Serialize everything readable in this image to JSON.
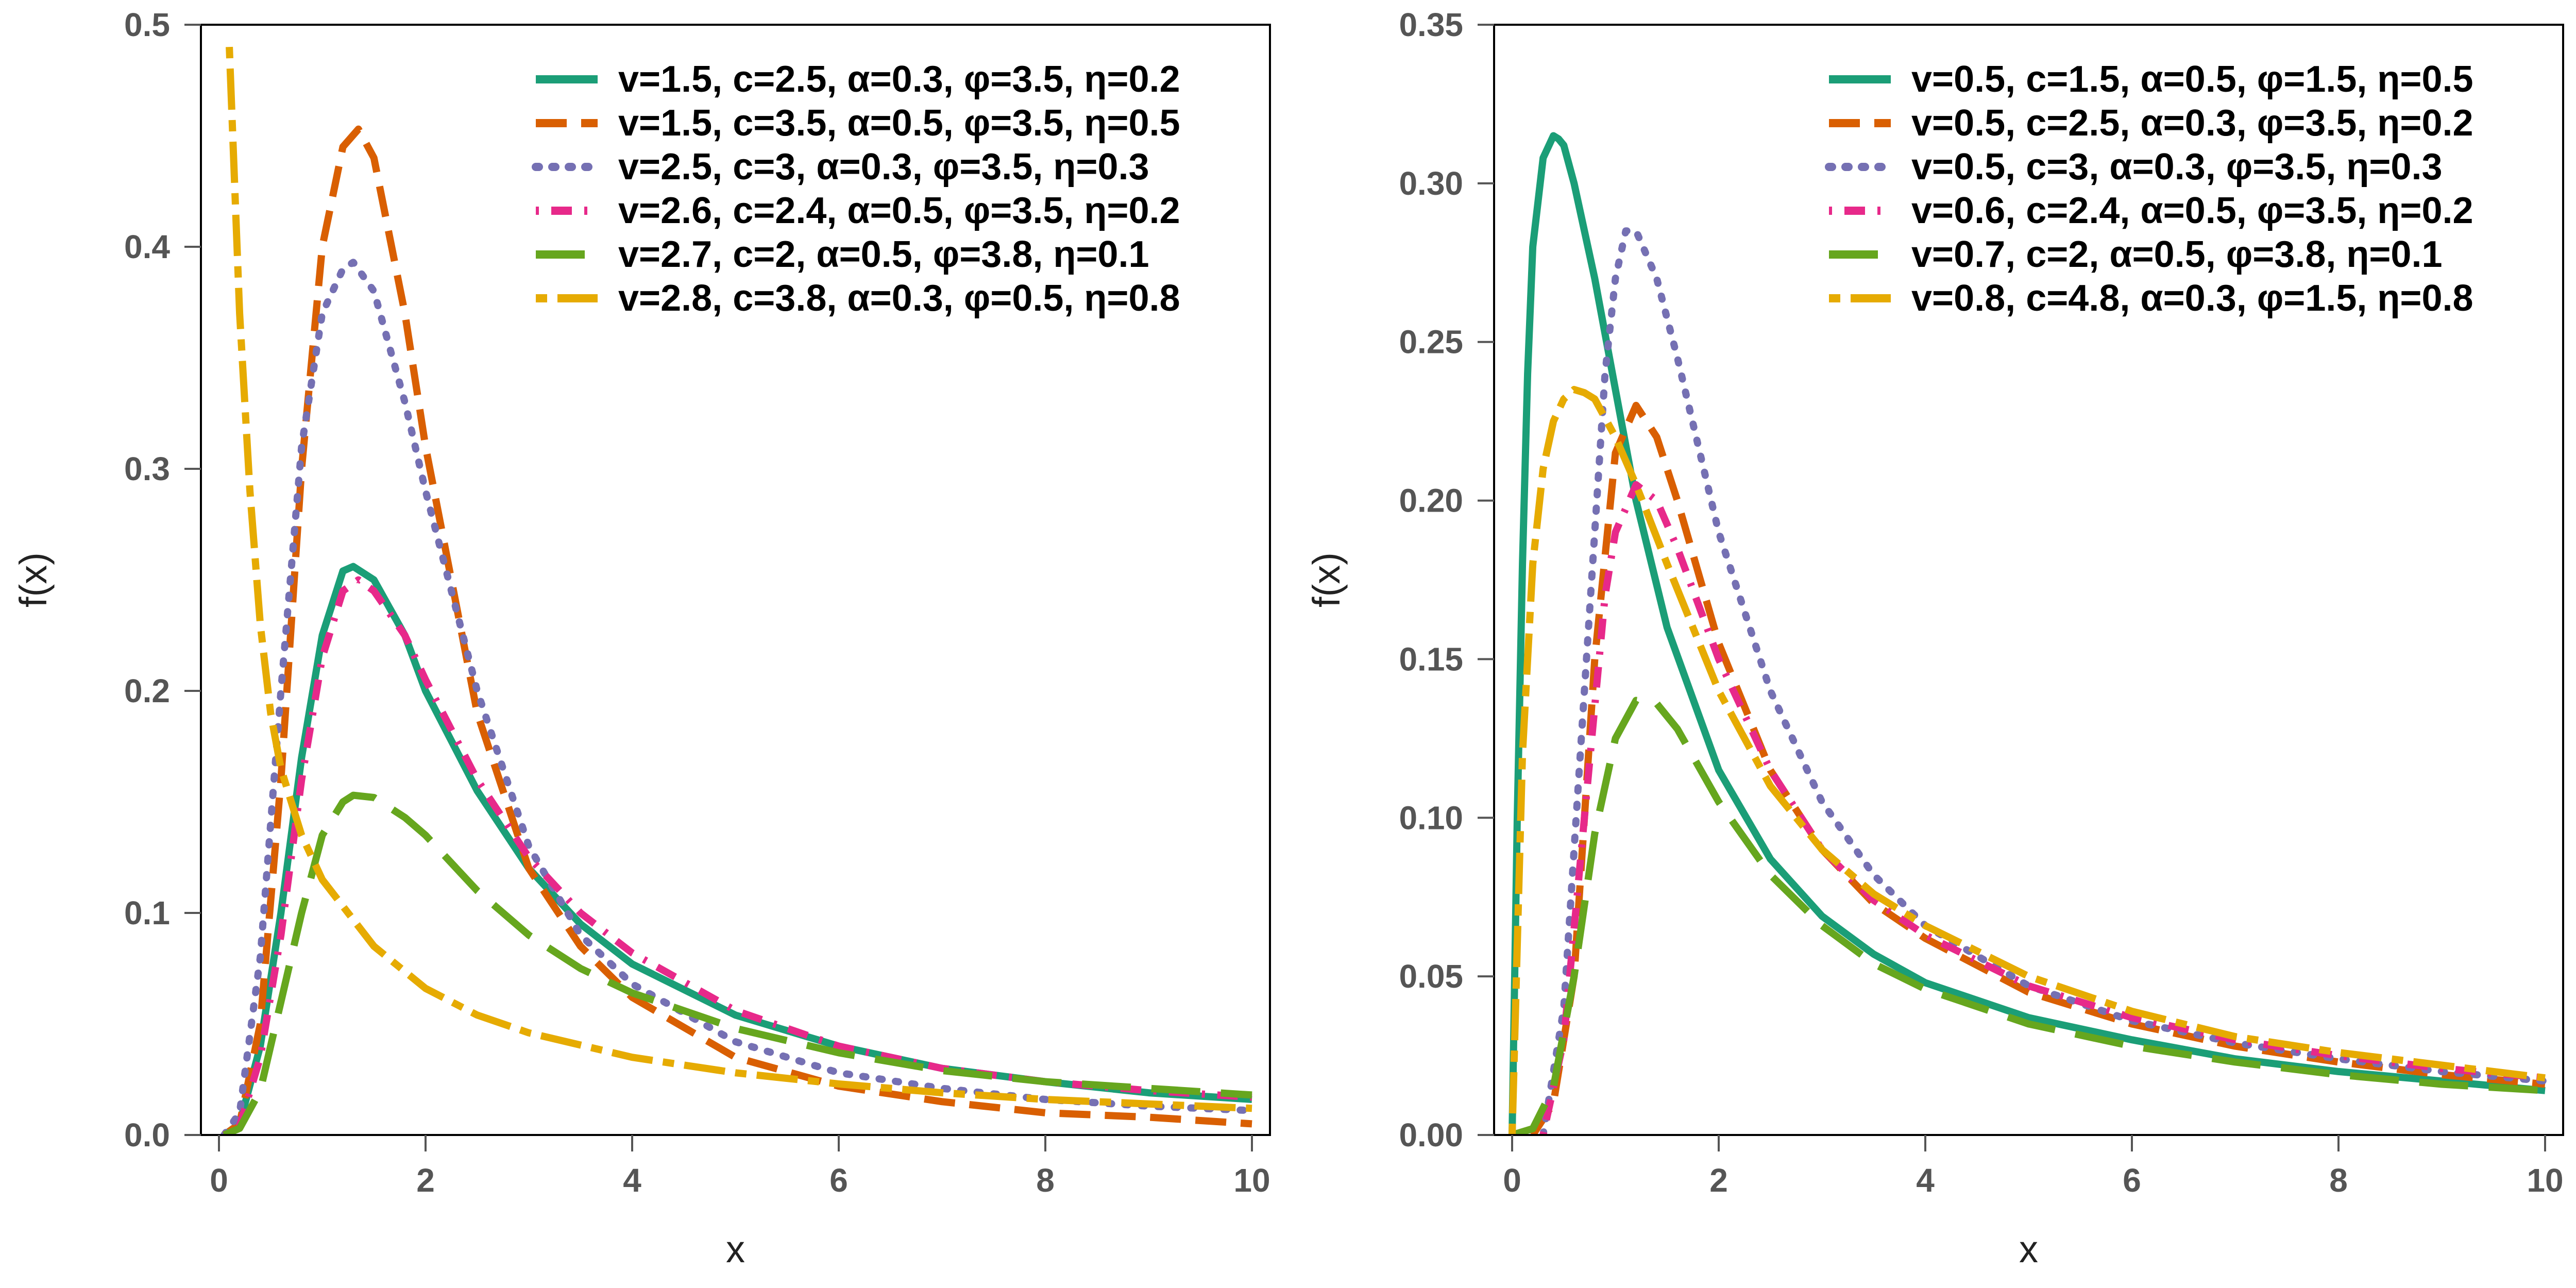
{
  "chart_data": [
    {
      "type": "line",
      "title": "",
      "xlabel": "x",
      "ylabel": "f(x)",
      "xlim": [
        0,
        10
      ],
      "ylim": [
        0,
        0.5
      ],
      "x_ticks": [
        0,
        2,
        4,
        6,
        8,
        10
      ],
      "y_ticks": [
        0.0,
        0.1,
        0.2,
        0.3,
        0.4,
        0.5
      ],
      "y_tick_labels": [
        "0.0",
        "0.1",
        "0.2",
        "0.3",
        "0.4",
        "0.5"
      ],
      "grid": false,
      "legend_position": "top-right",
      "series": [
        {
          "name": "v=1.5, c=2.5, α=0.3, φ=3.5, η=0.2",
          "color": "#1b9e77",
          "style": "solid",
          "x": [
            0.05,
            0.2,
            0.4,
            0.6,
            0.8,
            1.0,
            1.2,
            1.3,
            1.5,
            1.8,
            2.0,
            2.5,
            3.0,
            3.5,
            4.0,
            5.0,
            6.0,
            7.0,
            8.0,
            9.0,
            10.0
          ],
          "y": [
            0.0,
            0.005,
            0.04,
            0.1,
            0.17,
            0.225,
            0.254,
            0.256,
            0.25,
            0.225,
            0.2,
            0.155,
            0.12,
            0.095,
            0.077,
            0.054,
            0.04,
            0.03,
            0.024,
            0.019,
            0.016
          ]
        },
        {
          "name": "v=1.5, c=3.5, α=0.5, φ=3.5, η=0.5",
          "color": "#d95f02",
          "style": "dashed",
          "x": [
            0.05,
            0.2,
            0.4,
            0.6,
            0.8,
            1.0,
            1.2,
            1.35,
            1.5,
            1.8,
            2.0,
            2.5,
            3.0,
            3.5,
            4.0,
            5.0,
            6.0,
            7.0,
            8.0,
            9.0,
            10.0
          ],
          "y": [
            0.0,
            0.005,
            0.05,
            0.16,
            0.3,
            0.4,
            0.445,
            0.453,
            0.44,
            0.37,
            0.31,
            0.19,
            0.12,
            0.085,
            0.062,
            0.035,
            0.022,
            0.015,
            0.01,
            0.008,
            0.005
          ]
        },
        {
          "name": "v=2.5, c=3, α=0.3, φ=3.5, η=0.3",
          "color": "#7570b3",
          "style": "dotted",
          "x": [
            0.05,
            0.2,
            0.4,
            0.6,
            0.8,
            1.0,
            1.2,
            1.3,
            1.5,
            1.8,
            2.0,
            2.5,
            3.0,
            3.5,
            4.0,
            5.0,
            6.0,
            7.0,
            8.0,
            9.0,
            10.0
          ],
          "y": [
            0.0,
            0.01,
            0.08,
            0.2,
            0.31,
            0.37,
            0.39,
            0.393,
            0.38,
            0.33,
            0.29,
            0.2,
            0.13,
            0.09,
            0.068,
            0.042,
            0.028,
            0.021,
            0.016,
            0.013,
            0.011
          ]
        },
        {
          "name": "v=2.6, c=2.4, α=0.5, φ=3.5, η=0.2",
          "color": "#e7298a",
          "style": "dotdash",
          "x": [
            0.05,
            0.2,
            0.4,
            0.6,
            0.8,
            1.0,
            1.2,
            1.35,
            1.5,
            1.8,
            2.0,
            2.5,
            3.0,
            3.5,
            4.0,
            5.0,
            6.0,
            7.0,
            8.0,
            9.0,
            10.0
          ],
          "y": [
            0.0,
            0.004,
            0.035,
            0.09,
            0.16,
            0.215,
            0.245,
            0.25,
            0.245,
            0.225,
            0.205,
            0.16,
            0.125,
            0.1,
            0.082,
            0.056,
            0.04,
            0.03,
            0.024,
            0.02,
            0.017
          ]
        },
        {
          "name": "v=2.7, c=2, α=0.5, φ=3.8, η=0.1",
          "color": "#66a61e",
          "style": "longdash",
          "x": [
            0.05,
            0.2,
            0.4,
            0.6,
            0.8,
            1.0,
            1.2,
            1.3,
            1.5,
            1.8,
            2.0,
            2.5,
            3.0,
            3.5,
            4.0,
            5.0,
            6.0,
            7.0,
            8.0,
            9.0,
            10.0
          ],
          "y": [
            0.0,
            0.003,
            0.02,
            0.06,
            0.1,
            0.135,
            0.15,
            0.153,
            0.152,
            0.143,
            0.135,
            0.11,
            0.09,
            0.075,
            0.064,
            0.048,
            0.037,
            0.029,
            0.024,
            0.021,
            0.018
          ]
        },
        {
          "name": "v=2.8, c=3.8, α=0.3, φ=0.5, η=0.8",
          "color": "#e6ab02",
          "style": "twodash",
          "x": [
            0.1,
            0.15,
            0.2,
            0.3,
            0.4,
            0.5,
            0.6,
            0.8,
            1.0,
            1.5,
            2.0,
            2.5,
            3.0,
            4.0,
            5.0,
            6.0,
            7.0,
            8.0,
            9.0,
            10.0
          ],
          "y": [
            0.49,
            0.43,
            0.37,
            0.29,
            0.23,
            0.19,
            0.165,
            0.135,
            0.115,
            0.085,
            0.066,
            0.054,
            0.046,
            0.035,
            0.028,
            0.023,
            0.019,
            0.016,
            0.014,
            0.012
          ]
        }
      ]
    },
    {
      "type": "line",
      "title": "",
      "xlabel": "x",
      "ylabel": "f(x)",
      "xlim": [
        0,
        10
      ],
      "ylim": [
        0,
        0.35
      ],
      "x_ticks": [
        0,
        2,
        4,
        6,
        8,
        10
      ],
      "y_ticks": [
        0.0,
        0.05,
        0.1,
        0.15,
        0.2,
        0.25,
        0.3,
        0.35
      ],
      "y_tick_labels": [
        "0.00",
        "0.05",
        "0.10",
        "0.15",
        "0.20",
        "0.25",
        "0.30",
        "0.35"
      ],
      "grid": false,
      "legend_position": "top-right",
      "series": [
        {
          "name": "v=0.5, c=1.5, α=0.5, φ=1.5, η=0.5",
          "color": "#1b9e77",
          "style": "solid",
          "x": [
            0.0,
            0.02,
            0.05,
            0.1,
            0.15,
            0.2,
            0.3,
            0.4,
            0.45,
            0.5,
            0.6,
            0.8,
            1.0,
            1.2,
            1.5,
            2.0,
            2.5,
            3.0,
            3.5,
            4.0,
            5.0,
            6.0,
            7.0,
            8.0,
            9.0,
            10.0
          ],
          "y": [
            0.0,
            0.04,
            0.1,
            0.18,
            0.24,
            0.28,
            0.308,
            0.315,
            0.314,
            0.312,
            0.3,
            0.27,
            0.235,
            0.2,
            0.16,
            0.115,
            0.087,
            0.069,
            0.057,
            0.048,
            0.037,
            0.03,
            0.024,
            0.02,
            0.017,
            0.014
          ]
        },
        {
          "name": "v=0.5, c=2.5, α=0.3, φ=3.5, η=0.2",
          "color": "#d95f02",
          "style": "dashed",
          "x": [
            0.2,
            0.4,
            0.6,
            0.8,
            1.0,
            1.2,
            1.4,
            1.6,
            2.0,
            2.5,
            3.0,
            3.5,
            4.0,
            5.0,
            6.0,
            7.0,
            8.0,
            9.0,
            10.0
          ],
          "y": [
            0.0,
            0.01,
            0.05,
            0.15,
            0.215,
            0.23,
            0.22,
            0.2,
            0.155,
            0.115,
            0.09,
            0.073,
            0.062,
            0.045,
            0.035,
            0.028,
            0.023,
            0.019,
            0.016
          ]
        },
        {
          "name": "v=0.5, c=3, α=0.3, φ=3.5, η=0.3",
          "color": "#7570b3",
          "style": "dotted",
          "x": [
            0.3,
            0.5,
            0.7,
            0.9,
            1.0,
            1.1,
            1.2,
            1.4,
            1.6,
            2.0,
            2.5,
            3.0,
            3.5,
            4.0,
            5.0,
            6.0,
            7.0,
            8.0,
            9.0,
            10.0
          ],
          "y": [
            0.0,
            0.04,
            0.14,
            0.24,
            0.27,
            0.285,
            0.285,
            0.27,
            0.245,
            0.19,
            0.14,
            0.105,
            0.082,
            0.066,
            0.047,
            0.036,
            0.029,
            0.024,
            0.02,
            0.017
          ]
        },
        {
          "name": "v=0.6, c=2.4, α=0.5, φ=3.5, η=0.2",
          "color": "#e7298a",
          "style": "dotdash",
          "x": [
            0.3,
            0.5,
            0.7,
            0.9,
            1.0,
            1.2,
            1.4,
            1.6,
            2.0,
            2.5,
            3.0,
            3.5,
            4.0,
            5.0,
            6.0,
            7.0,
            8.0,
            9.0,
            10.0
          ],
          "y": [
            0.0,
            0.03,
            0.1,
            0.17,
            0.19,
            0.205,
            0.2,
            0.185,
            0.15,
            0.115,
            0.09,
            0.074,
            0.063,
            0.047,
            0.037,
            0.03,
            0.025,
            0.021,
            0.018
          ]
        },
        {
          "name": "v=0.7, c=2, α=0.5, φ=3.8, η=0.1",
          "color": "#66a61e",
          "style": "longdash",
          "x": [
            0.0,
            0.2,
            0.4,
            0.6,
            0.8,
            1.0,
            1.2,
            1.4,
            1.6,
            2.0,
            2.5,
            3.0,
            3.5,
            4.0,
            5.0,
            6.0,
            7.0,
            8.0,
            9.0,
            10.0
          ],
          "y": [
            0.0,
            0.002,
            0.015,
            0.05,
            0.095,
            0.125,
            0.137,
            0.136,
            0.128,
            0.105,
            0.082,
            0.066,
            0.054,
            0.046,
            0.035,
            0.028,
            0.023,
            0.019,
            0.016,
            0.014
          ]
        },
        {
          "name": "v=0.8, c=4.8, α=0.3, φ=1.5, η=0.8",
          "color": "#e6ab02",
          "style": "twodash",
          "x": [
            0.0,
            0.05,
            0.1,
            0.2,
            0.3,
            0.4,
            0.5,
            0.6,
            0.7,
            0.8,
            1.0,
            1.2,
            1.5,
            2.0,
            2.5,
            3.0,
            3.5,
            4.0,
            5.0,
            6.0,
            7.0,
            8.0,
            9.0,
            10.0
          ],
          "y": [
            0.0,
            0.06,
            0.12,
            0.18,
            0.21,
            0.225,
            0.232,
            0.235,
            0.234,
            0.232,
            0.22,
            0.205,
            0.18,
            0.14,
            0.11,
            0.09,
            0.076,
            0.066,
            0.05,
            0.039,
            0.031,
            0.026,
            0.022,
            0.018
          ]
        }
      ]
    }
  ]
}
